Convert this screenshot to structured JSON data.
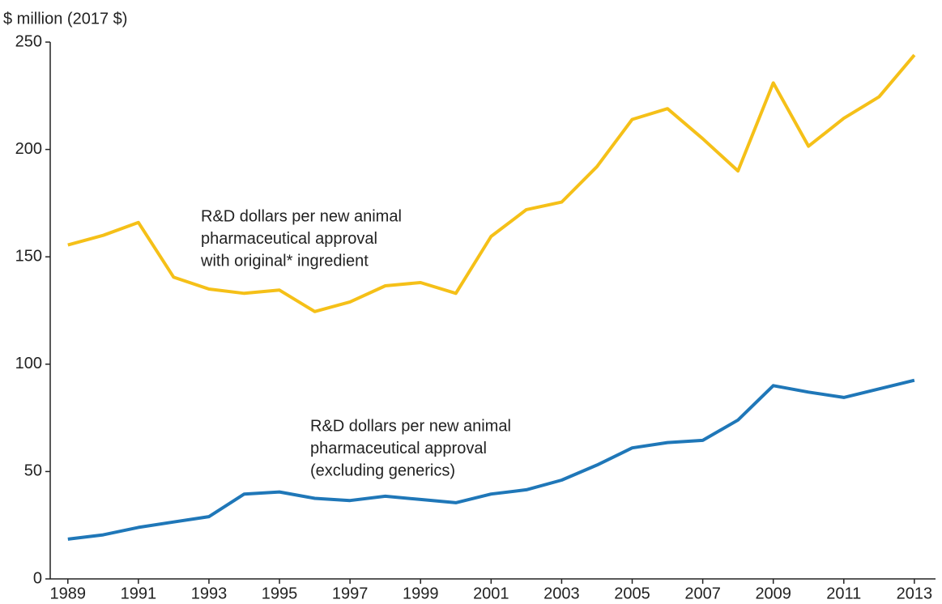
{
  "chart_data": {
    "type": "line",
    "y_axis_label": "$ million (2017 $)",
    "x": [
      1989,
      1990,
      1991,
      1992,
      1993,
      1994,
      1995,
      1996,
      1997,
      1998,
      1999,
      2000,
      2001,
      2002,
      2003,
      2004,
      2005,
      2006,
      2007,
      2008,
      2009,
      2010,
      2011,
      2012,
      2013
    ],
    "series": [
      {
        "name": "R&D dollars per new animal pharmaceutical approval with original* ingredient",
        "color": "#f5c018",
        "values": [
          155.5,
          160,
          166,
          140.5,
          135,
          133,
          134.5,
          124.5,
          129,
          136.5,
          138,
          133,
          159.5,
          172,
          175.5,
          192,
          214,
          219,
          205,
          190,
          231,
          201.5,
          214.5,
          224.5,
          244
        ]
      },
      {
        "name": "R&D dollars per new animal pharmaceutical approval (excluding generics)",
        "color": "#1f77b8",
        "values": [
          18.5,
          20.5,
          24,
          26.5,
          29,
          39.5,
          40.5,
          37.5,
          36.5,
          38.5,
          37,
          35.5,
          39.5,
          41.5,
          46,
          53,
          61,
          63.5,
          64.5,
          74,
          90,
          87,
          84.5,
          88.5,
          92.5
        ]
      }
    ],
    "annotations": [
      {
        "lines": [
          "R&D dollars per new animal",
          "pharmaceutical approval",
          "with original* ingredient"
        ]
      },
      {
        "lines": [
          "R&D dollars per new animal",
          "pharmaceutical approval",
          "(excluding generics)"
        ]
      }
    ],
    "xlim": [
      1988.5,
      2013.6
    ],
    "xticks": [
      1989,
      1991,
      1993,
      1995,
      1997,
      1999,
      2001,
      2003,
      2005,
      2007,
      2009,
      2011,
      2013
    ],
    "ylim": [
      0,
      250
    ],
    "yticks": [
      0,
      50,
      100,
      150,
      200,
      250
    ],
    "grid": false
  }
}
